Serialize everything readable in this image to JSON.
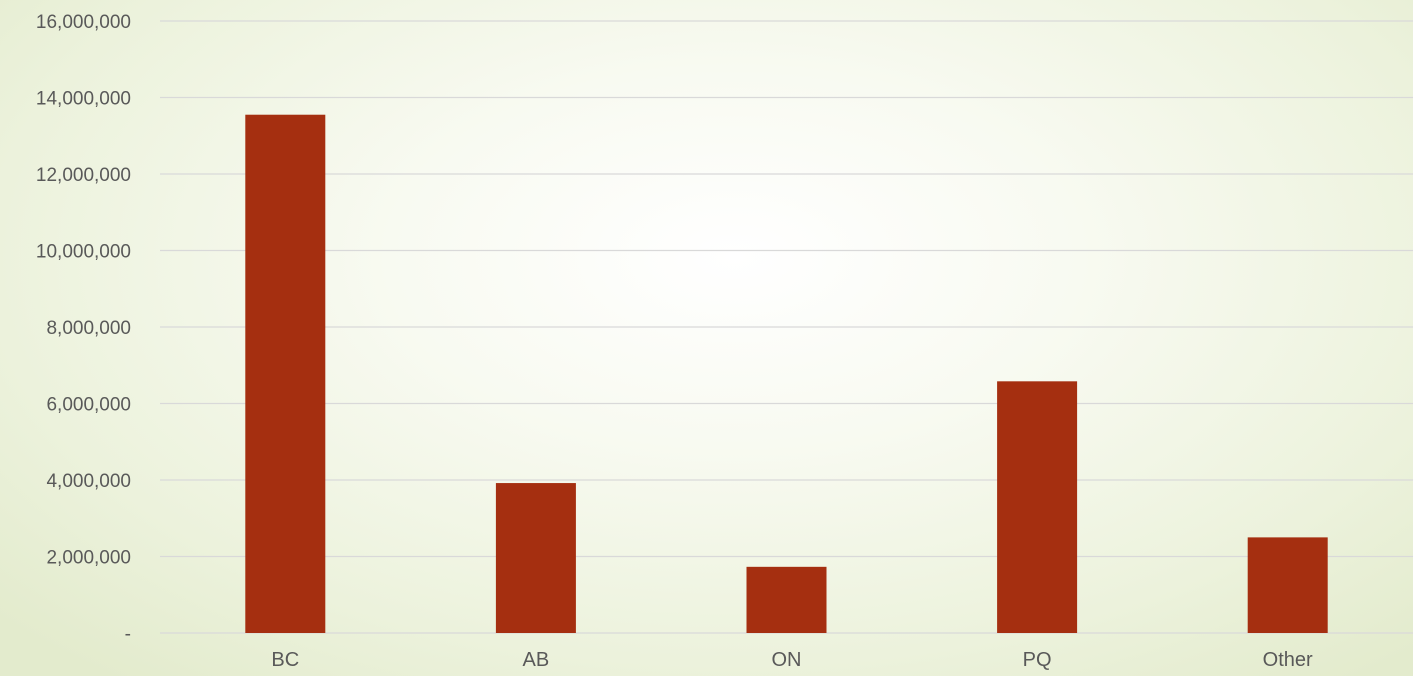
{
  "chart_data": {
    "type": "bar",
    "categories": [
      "BC",
      "AB",
      "ON",
      "PQ",
      "Other"
    ],
    "values": [
      13550000,
      3920000,
      1730000,
      6580000,
      2500000
    ],
    "ylim": [
      0,
      16000000
    ],
    "yticks": [
      0,
      2000000,
      4000000,
      6000000,
      8000000,
      10000000,
      12000000,
      14000000,
      16000000
    ],
    "ytick_labels": [
      "-",
      "2,000,000",
      "4,000,000",
      "6,000,000",
      "8,000,000",
      "10,000,000",
      "12,000,000",
      "14,000,000",
      "16,000,000"
    ],
    "grid": true,
    "legend": "none",
    "title": "",
    "xlabel": "",
    "ylabel": "",
    "bar_color": "#a52f10",
    "gridline_color": "#d9d9d9"
  }
}
